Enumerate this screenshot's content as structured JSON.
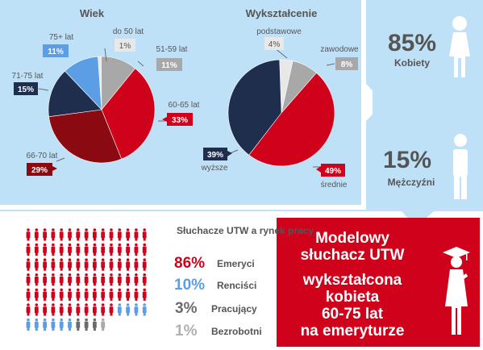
{
  "colors": {
    "bg_blue": "#bfe1f7",
    "red": "#d0021b",
    "dark_red": "#8b0a12",
    "navy": "#1f2e4d",
    "light_blue": "#5b9ee6",
    "gray": "#a8a8a8",
    "light_gray": "#e8e8e8",
    "pale_blue": "#dbeefb",
    "white": "#ffffff",
    "text_gray": "#6b6b6b"
  },
  "chart_data": [
    {
      "type": "pie",
      "title": "Wiek",
      "slices": [
        {
          "label": "do 50 lat",
          "value": 1,
          "value_label": "1%",
          "color": "#e8e8e8"
        },
        {
          "label": "51-59 lat",
          "value": 11,
          "value_label": "11%",
          "color": "#a8a8a8"
        },
        {
          "label": "60-65 lat",
          "value": 33,
          "value_label": "33%",
          "color": "#d0021b"
        },
        {
          "label": "66-70 lat",
          "value": 29,
          "value_label": "29%",
          "color": "#8b0a12"
        },
        {
          "label": "71-75 lat",
          "value": 15,
          "value_label": "15%",
          "color": "#1f2e4d"
        },
        {
          "label": "75+ lat",
          "value": 11,
          "value_label": "11%",
          "color": "#5b9ee6"
        }
      ]
    },
    {
      "type": "pie",
      "title": "Wykształcenie",
      "slices": [
        {
          "label": "podstawowe",
          "value": 4,
          "value_label": "4%",
          "color": "#e8e8e8"
        },
        {
          "label": "zawodowe",
          "value": 8,
          "value_label": "8%",
          "color": "#a8a8a8"
        },
        {
          "label": "średnie",
          "value": 49,
          "value_label": "49%",
          "color": "#d0021b"
        },
        {
          "label": "wyższe",
          "value": 39,
          "value_label": "39%",
          "color": "#1f2e4d"
        }
      ]
    },
    {
      "type": "table",
      "title": "Słuchacze UTW a rynek pracy",
      "rows": [
        {
          "value": 86,
          "value_label": "86%",
          "label": "Emeryci",
          "color": "#d0021b"
        },
        {
          "value": 10,
          "value_label": "10%",
          "label": "Renciści",
          "color": "#5b9ee6"
        },
        {
          "value": 3,
          "value_label": "3%",
          "label": "Pracujący",
          "color": "#6b6b6b"
        },
        {
          "value": 1,
          "value_label": "1%",
          "label": "Bezrobotni",
          "color": "#a8a8a8"
        }
      ]
    }
  ],
  "gender": {
    "women": {
      "value_label": "85%",
      "label": "Kobiety",
      "value": 85
    },
    "men": {
      "value_label": "15%",
      "label": "Mężczyźni",
      "value": 15
    }
  },
  "summary": {
    "lines": [
      "Modelowy",
      "słuchacz UTW",
      "wykształcona",
      "kobieta",
      "60-75 lat",
      "na emeryturze"
    ]
  }
}
